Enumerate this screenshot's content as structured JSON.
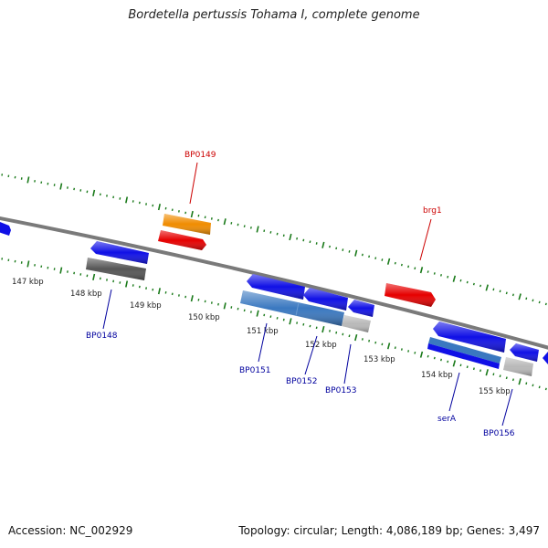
{
  "title": "Bordetella pertussis Tohama I, complete genome",
  "footer": {
    "accession": "Accession: NC_002929",
    "summary": "Topology: circular; Length: 4,086,189 bp; Genes: 3,497"
  },
  "colors": {
    "backbone": "#7a7a7a",
    "tick": "#1a7a1a",
    "ruler_label": "#222222",
    "gene_label_forward": "#cc0000",
    "gene_label_reverse": "#00009e",
    "feature_blue": "#1010e6",
    "feature_red": "#e60000",
    "feature_orange": "#f08c00",
    "feature_gray": "#555555",
    "feature_steelblue": "#3a78c0",
    "feature_lightgray": "#b8b8b8"
  },
  "ruler": {
    "unit": "kbp",
    "labels": [
      "147 kbp",
      "148 kbp",
      "149 kbp",
      "150 kbp",
      "151 kbp",
      "152 kbp",
      "153 kbp",
      "154 kbp",
      "155 kbp"
    ]
  },
  "genes": [
    {
      "name": "BP0149",
      "strand": "forward"
    },
    {
      "name": "brg1",
      "strand": "forward"
    },
    {
      "name": "BP0148",
      "strand": "reverse"
    },
    {
      "name": "BP0151",
      "strand": "reverse"
    },
    {
      "name": "BP0152",
      "strand": "reverse"
    },
    {
      "name": "BP0153",
      "strand": "reverse"
    },
    {
      "name": "serA",
      "strand": "reverse"
    },
    {
      "name": "BP0156",
      "strand": "reverse"
    }
  ]
}
